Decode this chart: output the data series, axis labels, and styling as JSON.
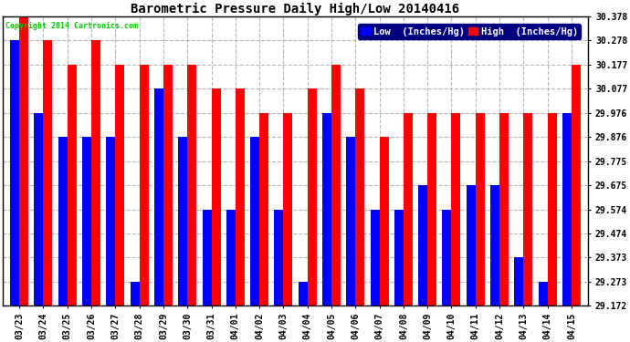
{
  "title": "Barometric Pressure Daily High/Low 20140416",
  "copyright": "Copyright 2014 Cartronics.com",
  "legend_low": "Low  (Inches/Hg)",
  "legend_high": "High  (Inches/Hg)",
  "low_color": "#0000ff",
  "high_color": "#ff0000",
  "background_color": "#ffffff",
  "grid_color": "#b0b0b0",
  "ylim_min": 29.172,
  "ylim_max": 30.378,
  "yticks": [
    29.172,
    29.273,
    29.373,
    29.474,
    29.574,
    29.675,
    29.775,
    29.876,
    29.976,
    30.077,
    30.177,
    30.278,
    30.378
  ],
  "dates": [
    "03/23",
    "03/24",
    "03/25",
    "03/26",
    "03/27",
    "03/28",
    "03/29",
    "03/30",
    "03/31",
    "04/01",
    "04/02",
    "04/03",
    "04/04",
    "04/05",
    "04/06",
    "04/07",
    "04/08",
    "04/09",
    "04/10",
    "04/11",
    "04/12",
    "04/13",
    "04/14",
    "04/15"
  ],
  "high_values": [
    30.378,
    30.278,
    30.177,
    30.278,
    30.177,
    30.177,
    30.177,
    30.177,
    30.077,
    30.077,
    29.976,
    29.976,
    30.077,
    30.177,
    30.077,
    29.876,
    29.976,
    29.976,
    29.976,
    29.976,
    29.976,
    29.976,
    29.976,
    30.177
  ],
  "low_values": [
    30.278,
    29.976,
    29.876,
    29.876,
    29.876,
    29.273,
    30.077,
    29.876,
    29.574,
    29.574,
    29.876,
    29.574,
    29.273,
    29.976,
    29.876,
    29.574,
    29.574,
    29.675,
    29.574,
    29.675,
    29.675,
    29.373,
    29.273,
    29.976
  ],
  "bar_width": 0.38,
  "title_fontsize": 10,
  "tick_fontsize": 7,
  "legend_fontsize": 7.5,
  "figwidth": 6.9,
  "figheight": 3.75,
  "dpi": 100
}
